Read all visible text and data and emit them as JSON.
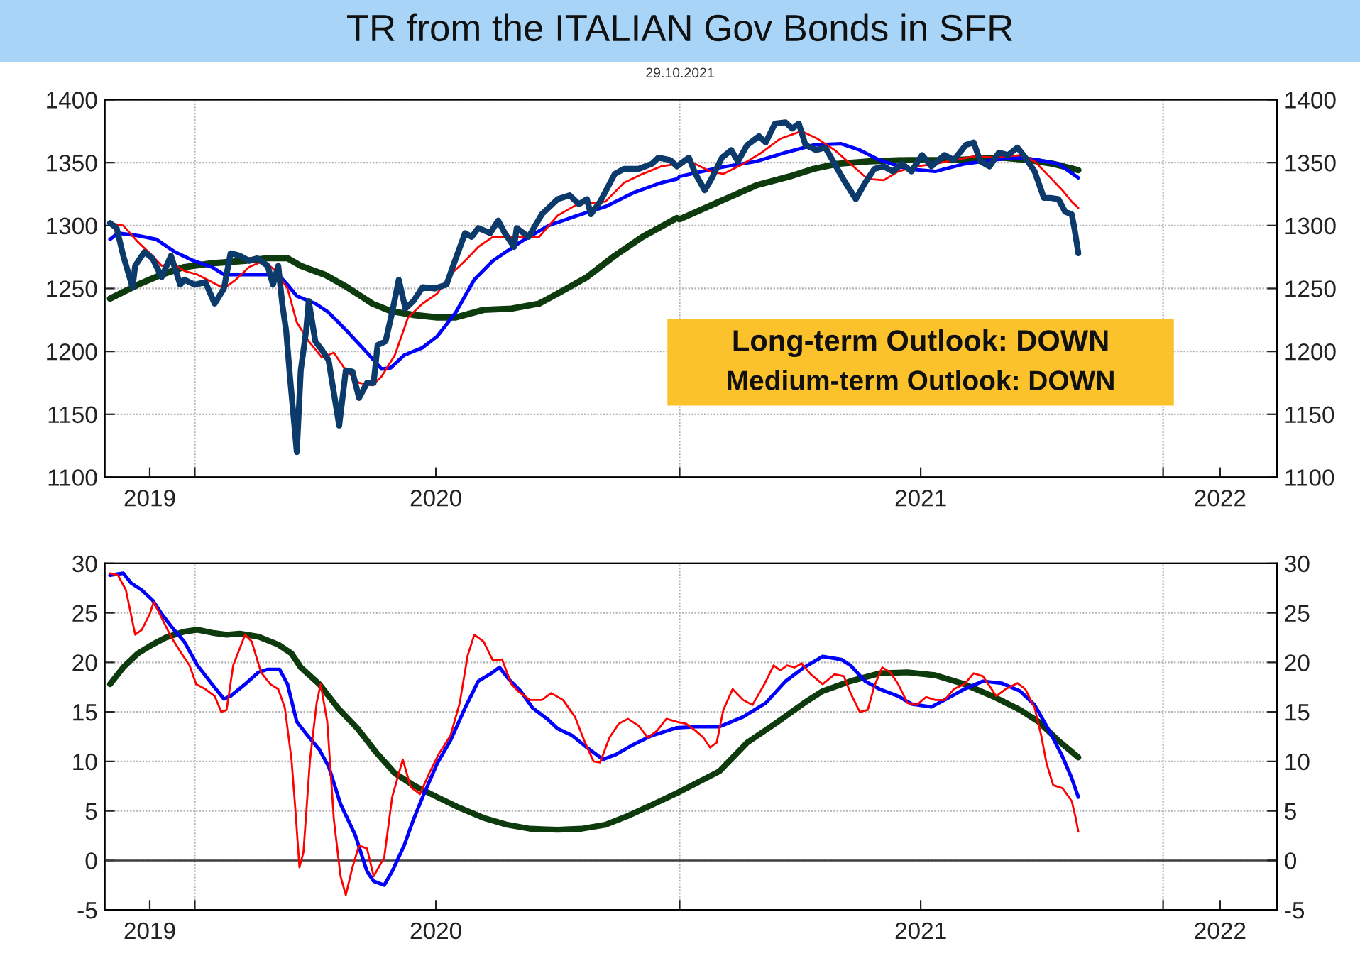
{
  "chart_data": [
    {
      "type": "line",
      "title": "TR from the ITALIAN Gov Bonds in SFR",
      "subtitle": "29.10.2021",
      "annotations": [
        "Long-term Outlook: DOWN",
        "Medium-term Outlook: DOWN"
      ],
      "xlim": [
        "2019-10-25",
        "2022-03-28"
      ],
      "xticks": [
        {
          "value": "2019-11-28",
          "label": "2019"
        },
        {
          "value": "2020-01-01",
          "label": null
        },
        {
          "value": "2020-07-01",
          "label": "2020"
        },
        {
          "value": "2021-01-01",
          "label": null
        },
        {
          "value": "2021-07-02",
          "label": "2021"
        },
        {
          "value": "2022-01-01",
          "label": null
        },
        {
          "value": "2022-02-13",
          "label": "2022"
        }
      ],
      "ylim": [
        1100,
        1400
      ],
      "yticks": [
        1100,
        1150,
        1200,
        1250,
        1300,
        1350,
        1400
      ],
      "y2lim": [
        1100,
        1400
      ],
      "y2ticks": [
        1100,
        1150,
        1200,
        1250,
        1300,
        1350,
        1400
      ],
      "grid": true,
      "series": [
        {
          "color": "#0b3a6b",
          "x": [
            "2019-10-29",
            "2019-11-03",
            "2019-11-08",
            "2019-11-15",
            "2019-11-17",
            "2019-11-24",
            "2019-11-30",
            "2019-12-07",
            "2019-12-14",
            "2019-12-21",
            "2019-12-24",
            "2020-01-01",
            "2020-01-09",
            "2020-01-16",
            "2020-01-23",
            "2020-01-28",
            "2020-02-04",
            "2020-02-11",
            "2020-02-17",
            "2020-02-25",
            "2020-02-29",
            "2020-03-04",
            "2020-03-07",
            "2020-03-10",
            "2020-03-13",
            "2020-03-18",
            "2020-03-21",
            "2020-03-25",
            "2020-03-27",
            "2020-04-01",
            "2020-04-06",
            "2020-04-11",
            "2020-04-15",
            "2020-04-19",
            "2020-04-24",
            "2020-04-29",
            "2020-05-04",
            "2020-05-10",
            "2020-05-15",
            "2020-05-18",
            "2020-05-24",
            "2020-05-29",
            "2020-06-03",
            "2020-06-08",
            "2020-06-14",
            "2020-06-21",
            "2020-06-30",
            "2020-07-09",
            "2020-07-14",
            "2020-07-23",
            "2020-07-28",
            "2020-08-02",
            "2020-08-11",
            "2020-08-17",
            "2020-08-22",
            "2020-08-29",
            "2020-08-31",
            "2020-09-09",
            "2020-09-19",
            "2020-10-01",
            "2020-10-10",
            "2020-10-17",
            "2020-10-23",
            "2020-10-26",
            "2020-11-02",
            "2020-11-13",
            "2020-11-20",
            "2020-12-01",
            "2020-12-11",
            "2020-12-16",
            "2020-12-25",
            "2020-12-30",
            "2021-01-08",
            "2021-01-13",
            "2021-01-20",
            "2021-01-25",
            "2021-02-02",
            "2021-02-09",
            "2021-02-14",
            "2021-02-21",
            "2021-03-02",
            "2021-03-07",
            "2021-03-14",
            "2021-03-22",
            "2021-03-27",
            "2021-04-01",
            "2021-04-06",
            "2021-04-14",
            "2021-04-21",
            "2021-04-28",
            "2021-05-05",
            "2021-05-14",
            "2021-05-21",
            "2021-05-28",
            "2021-06-04",
            "2021-06-11",
            "2021-06-18",
            "2021-06-25",
            "2021-07-03",
            "2021-07-10",
            "2021-07-20",
            "2021-07-27",
            "2021-08-05",
            "2021-08-11",
            "2021-08-16",
            "2021-08-23",
            "2021-08-30",
            "2021-09-06",
            "2021-09-13",
            "2021-09-19",
            "2021-09-26",
            "2021-10-03",
            "2021-10-08",
            "2021-10-14",
            "2021-10-19",
            "2021-10-24",
            "2021-10-26",
            "2021-10-29"
          ],
          "values": [
            1302,
            1298,
            1276,
            1251,
            1268,
            1279,
            1274,
            1259,
            1276,
            1253,
            1257,
            1253,
            1255,
            1238,
            1250,
            1278,
            1276,
            1272,
            1274,
            1268,
            1253,
            1268,
            1238,
            1216,
            1178,
            1120,
            1185,
            1216,
            1240,
            1208,
            1201,
            1193,
            1167,
            1141,
            1185,
            1184,
            1163,
            1175,
            1175,
            1205,
            1208,
            1231,
            1257,
            1234,
            1240,
            1251,
            1250,
            1253,
            1268,
            1294,
            1291,
            1298,
            1294,
            1304,
            1294,
            1283,
            1298,
            1291,
            1309,
            1321,
            1324,
            1317,
            1321,
            1309,
            1319,
            1341,
            1345,
            1345,
            1349,
            1354,
            1352,
            1347,
            1354,
            1341,
            1328,
            1337,
            1354,
            1360,
            1351,
            1364,
            1371,
            1366,
            1381,
            1382,
            1377,
            1381,
            1364,
            1360,
            1362,
            1349,
            1336,
            1321,
            1334,
            1345,
            1347,
            1343,
            1349,
            1343,
            1356,
            1347,
            1356,
            1352,
            1364,
            1366,
            1351,
            1347,
            1358,
            1356,
            1362,
            1354,
            1343,
            1322,
            1322,
            1321,
            1311,
            1309,
            1298,
            1278
          ]
        },
        {
          "color": "#ff0000",
          "x": [
            "2019-10-29",
            "2019-11-08",
            "2019-11-19",
            "2019-11-30",
            "2019-12-07",
            "2019-12-15",
            "2019-12-24",
            "2020-01-03",
            "2020-01-14",
            "2020-01-23",
            "2020-02-01",
            "2020-02-11",
            "2020-02-22",
            "2020-03-02",
            "2020-03-11",
            "2020-03-18",
            "2020-03-27",
            "2020-04-06",
            "2020-04-15",
            "2020-04-24",
            "2020-05-04",
            "2020-05-14",
            "2020-05-21",
            "2020-05-31",
            "2020-06-10",
            "2020-06-21",
            "2020-07-02",
            "2020-07-12",
            "2020-07-23",
            "2020-08-02",
            "2020-08-13",
            "2020-08-27",
            "2020-09-17",
            "2020-10-01",
            "2020-10-16",
            "2020-11-06",
            "2020-11-20",
            "2020-12-04",
            "2020-12-18",
            "2020-12-30",
            "2021-01-09",
            "2021-01-24",
            "2021-02-03",
            "2021-02-18",
            "2021-03-04",
            "2021-03-18",
            "2021-04-03",
            "2021-04-15",
            "2021-04-28",
            "2021-05-10",
            "2021-05-23",
            "2021-06-04",
            "2021-06-15",
            "2021-06-29",
            "2021-07-13",
            "2021-07-27",
            "2021-08-11",
            "2021-08-28",
            "2021-09-15",
            "2021-09-26",
            "2021-10-07",
            "2021-10-17",
            "2021-10-24",
            "2021-10-29"
          ],
          "values": [
            1302,
            1300,
            1287,
            1276,
            1268,
            1270,
            1264,
            1261,
            1255,
            1250,
            1257,
            1267,
            1272,
            1264,
            1250,
            1223,
            1208,
            1195,
            1199,
            1185,
            1175,
            1173,
            1180,
            1197,
            1227,
            1238,
            1246,
            1261,
            1272,
            1283,
            1291,
            1291,
            1291,
            1308,
            1317,
            1319,
            1334,
            1341,
            1347,
            1349,
            1351,
            1343,
            1341,
            1349,
            1358,
            1369,
            1375,
            1369,
            1360,
            1349,
            1337,
            1336,
            1343,
            1347,
            1349,
            1352,
            1355,
            1354,
            1356,
            1351,
            1339,
            1328,
            1319,
            1314
          ]
        },
        {
          "color": "#0000ff",
          "x": [
            "2019-10-29",
            "2019-11-04",
            "2019-11-19",
            "2019-12-03",
            "2019-12-17",
            "2019-12-31",
            "2020-01-14",
            "2020-01-23",
            "2020-02-04",
            "2020-02-25",
            "2020-03-04",
            "2020-03-11",
            "2020-03-18",
            "2020-04-01",
            "2020-04-11",
            "2020-04-25",
            "2020-05-10",
            "2020-05-21",
            "2020-05-28",
            "2020-06-07",
            "2020-06-21",
            "2020-07-02",
            "2020-07-16",
            "2020-07-30",
            "2020-08-13",
            "2020-09-03",
            "2020-09-24",
            "2020-10-16",
            "2020-11-06",
            "2020-11-27",
            "2020-12-18",
            "2020-12-30",
            "2021-01-01",
            "2021-01-31",
            "2021-02-28",
            "2021-03-22",
            "2021-04-12",
            "2021-05-03",
            "2021-05-17",
            "2021-06-01",
            "2021-06-22",
            "2021-07-13",
            "2021-08-04",
            "2021-08-25",
            "2021-09-12",
            "2021-09-29",
            "2021-10-14",
            "2021-10-29"
          ],
          "values": [
            1289,
            1294,
            1292,
            1289,
            1279,
            1272,
            1267,
            1261,
            1261,
            1261,
            1261,
            1253,
            1244,
            1238,
            1231,
            1216,
            1199,
            1186,
            1187,
            1197,
            1203,
            1212,
            1231,
            1257,
            1272,
            1287,
            1300,
            1308,
            1315,
            1326,
            1334,
            1337,
            1339,
            1346,
            1351,
            1358,
            1364,
            1365,
            1360,
            1352,
            1345,
            1343,
            1349,
            1352,
            1354,
            1352,
            1349,
            1338
          ]
        },
        {
          "color": "#0d3b0d",
          "x": [
            "2019-10-29",
            "2019-11-19",
            "2019-12-07",
            "2019-12-24",
            "2020-01-14",
            "2020-02-08",
            "2020-02-25",
            "2020-03-11",
            "2020-03-21",
            "2020-04-08",
            "2020-04-25",
            "2020-05-14",
            "2020-05-28",
            "2020-06-14",
            "2020-07-02",
            "2020-07-16",
            "2020-08-06",
            "2020-08-27",
            "2020-09-17",
            "2020-10-01",
            "2020-10-23",
            "2020-11-13",
            "2020-12-04",
            "2020-12-30",
            "2021-01-01",
            "2021-01-31",
            "2021-02-28",
            "2021-03-25",
            "2021-04-12",
            "2021-04-30",
            "2021-05-24",
            "2021-06-22",
            "2021-07-27",
            "2021-09-01",
            "2021-09-22",
            "2021-10-10",
            "2021-10-29"
          ],
          "values": [
            1242,
            1253,
            1261,
            1267,
            1270,
            1272,
            1274,
            1274,
            1268,
            1261,
            1251,
            1238,
            1232,
            1229,
            1227,
            1227,
            1233,
            1234,
            1238,
            1246,
            1259,
            1276,
            1291,
            1306,
            1305,
            1319,
            1332,
            1339,
            1345,
            1349,
            1351,
            1352,
            1352,
            1354,
            1352,
            1349,
            1344
          ]
        }
      ]
    },
    {
      "type": "line",
      "xlim": [
        "2019-10-25",
        "2022-03-28"
      ],
      "xticks": [
        {
          "value": "2019-11-28",
          "label": "2019"
        },
        {
          "value": "2020-01-01",
          "label": null
        },
        {
          "value": "2020-07-01",
          "label": "2020"
        },
        {
          "value": "2021-01-01",
          "label": null
        },
        {
          "value": "2021-07-02",
          "label": "2021"
        },
        {
          "value": "2022-01-01",
          "label": null
        },
        {
          "value": "2022-02-13",
          "label": "2022"
        }
      ],
      "ylim": [
        -5,
        30
      ],
      "yticks": [
        -5,
        0,
        5,
        10,
        15,
        20,
        25,
        30
      ],
      "y2lim": [
        -5,
        30
      ],
      "y2ticks": [
        -5,
        0,
        5,
        10,
        15,
        20,
        25,
        30
      ],
      "grid": true,
      "ref_lines": [
        {
          "axis": "y",
          "value": 0,
          "color": "#404040",
          "line_style": "solid"
        }
      ],
      "series": [
        {
          "color": "#ff0000",
          "x": [
            "2019-10-29",
            "2019-11-04",
            "2019-11-10",
            "2019-11-17",
            "2019-11-22",
            "2019-11-28",
            "2019-12-01",
            "2019-12-07",
            "2019-12-14",
            "2019-12-21",
            "2019-12-28",
            "2020-01-02",
            "2020-01-09",
            "2020-01-16",
            "2020-01-21",
            "2020-01-25",
            "2020-01-30",
            "2020-02-08",
            "2020-02-13",
            "2020-02-20",
            "2020-02-27",
            "2020-03-04",
            "2020-03-09",
            "2020-03-14",
            "2020-03-17",
            "2020-03-20",
            "2020-03-23",
            "2020-03-28",
            "2020-04-02",
            "2020-04-05",
            "2020-04-10",
            "2020-04-15",
            "2020-04-20",
            "2020-04-24",
            "2020-04-29",
            "2020-05-04",
            "2020-05-10",
            "2020-05-15",
            "2020-05-23",
            "2020-05-29",
            "2020-06-06",
            "2020-06-12",
            "2020-06-19",
            "2020-06-26",
            "2020-07-03",
            "2020-07-12",
            "2020-07-19",
            "2020-07-25",
            "2020-07-30",
            "2020-08-06",
            "2020-08-13",
            "2020-08-20",
            "2020-08-27",
            "2020-09-01",
            "2020-09-10",
            "2020-09-19",
            "2020-09-26",
            "2020-10-05",
            "2020-10-14",
            "2020-10-21",
            "2020-10-28",
            "2020-11-02",
            "2020-11-09",
            "2020-11-16",
            "2020-11-23",
            "2020-12-01",
            "2020-12-08",
            "2020-12-15",
            "2020-12-22",
            "2020-12-30",
            "2021-01-06",
            "2021-01-13",
            "2021-01-19",
            "2021-01-24",
            "2021-01-29",
            "2021-02-03",
            "2021-02-10",
            "2021-02-18",
            "2021-02-25",
            "2021-03-06",
            "2021-03-13",
            "2021-03-18",
            "2021-03-23",
            "2021-03-29",
            "2021-04-03",
            "2021-04-10",
            "2021-04-19",
            "2021-04-28",
            "2021-05-05",
            "2021-05-10",
            "2021-05-17",
            "2021-05-23",
            "2021-05-28",
            "2021-06-03",
            "2021-06-09",
            "2021-06-15",
            "2021-06-22",
            "2021-06-29",
            "2021-07-06",
            "2021-07-13",
            "2021-07-20",
            "2021-07-27",
            "2021-08-04",
            "2021-08-11",
            "2021-08-18",
            "2021-08-23",
            "2021-08-28",
            "2021-09-04",
            "2021-09-13",
            "2021-09-19",
            "2021-09-26",
            "2021-10-01",
            "2021-10-05",
            "2021-10-10",
            "2021-10-17",
            "2021-10-24",
            "2021-10-27",
            "2021-10-29"
          ],
          "values": [
            29.0,
            28.8,
            27.3,
            22.8,
            23.3,
            24.9,
            26.1,
            24.5,
            22.6,
            21.1,
            19.7,
            17.8,
            17.3,
            16.6,
            15.0,
            15.2,
            19.7,
            22.8,
            22.1,
            19.0,
            17.8,
            17.3,
            15.4,
            10.2,
            5.0,
            -0.7,
            0.8,
            10.2,
            15.9,
            17.8,
            14.0,
            4.1,
            -1.6,
            -3.5,
            -0.7,
            1.5,
            1.2,
            -1.6,
            0.3,
            6.4,
            10.2,
            7.4,
            6.7,
            8.8,
            10.7,
            12.6,
            15.9,
            20.7,
            22.8,
            22.1,
            20.2,
            20.3,
            17.8,
            17.1,
            16.2,
            16.2,
            16.9,
            16.2,
            14.5,
            12.1,
            10.0,
            9.9,
            12.4,
            13.8,
            14.3,
            13.6,
            12.4,
            13.1,
            14.3,
            14.0,
            13.8,
            13.1,
            12.4,
            11.4,
            11.9,
            15.2,
            17.3,
            16.2,
            15.7,
            17.8,
            19.7,
            19.2,
            19.7,
            19.5,
            19.9,
            18.8,
            17.8,
            18.8,
            18.6,
            16.9,
            15.0,
            15.2,
            17.6,
            19.5,
            19.0,
            17.8,
            15.9,
            15.7,
            16.5,
            16.2,
            16.2,
            17.3,
            17.8,
            18.9,
            18.6,
            17.6,
            16.6,
            17.3,
            17.9,
            17.3,
            15.4,
            12.6,
            9.8,
            7.6,
            7.3,
            6.0,
            4.3,
            2.9
          ]
        },
        {
          "color": "#0000ff",
          "x": [
            "2019-10-29",
            "2019-11-08",
            "2019-11-14",
            "2019-11-22",
            "2019-11-30",
            "2019-12-07",
            "2019-12-15",
            "2019-12-24",
            "2020-01-03",
            "2020-01-14",
            "2020-01-23",
            "2020-01-28",
            "2020-02-08",
            "2020-02-18",
            "2020-02-25",
            "2020-03-05",
            "2020-03-11",
            "2020-03-18",
            "2020-03-25",
            "2020-04-04",
            "2020-04-11",
            "2020-04-20",
            "2020-05-01",
            "2020-05-10",
            "2020-05-15",
            "2020-05-23",
            "2020-05-29",
            "2020-06-07",
            "2020-06-14",
            "2020-06-21",
            "2020-07-02",
            "2020-07-12",
            "2020-07-23",
            "2020-08-02",
            "2020-08-13",
            "2020-08-18",
            "2020-08-25",
            "2020-09-03",
            "2020-09-12",
            "2020-09-23",
            "2020-10-01",
            "2020-10-12",
            "2020-10-23",
            "2020-11-04",
            "2020-11-14",
            "2020-11-27",
            "2020-12-11",
            "2020-12-30",
            "2021-01-13",
            "2021-01-31",
            "2021-02-18",
            "2021-03-07",
            "2021-03-22",
            "2021-04-05",
            "2021-04-19",
            "2021-05-03",
            "2021-05-10",
            "2021-05-21",
            "2021-06-01",
            "2021-06-15",
            "2021-06-25",
            "2021-07-10",
            "2021-07-20",
            "2021-08-04",
            "2021-08-18",
            "2021-09-01",
            "2021-09-15",
            "2021-09-26",
            "2021-10-07",
            "2021-10-17",
            "2021-10-24",
            "2021-10-29"
          ],
          "values": [
            28.8,
            29.0,
            28.0,
            27.3,
            26.3,
            24.9,
            23.5,
            22.1,
            19.7,
            17.8,
            16.3,
            16.6,
            17.8,
            19.0,
            19.3,
            19.3,
            17.8,
            14.0,
            12.8,
            11.2,
            9.5,
            5.7,
            2.6,
            -1.1,
            -2.1,
            -2.5,
            -1.1,
            1.5,
            4.1,
            6.4,
            9.8,
            12.1,
            15.4,
            18.1,
            19.0,
            19.5,
            18.3,
            17.1,
            15.4,
            14.3,
            13.3,
            12.6,
            11.4,
            10.2,
            10.7,
            11.7,
            12.6,
            13.4,
            13.5,
            13.5,
            14.5,
            15.9,
            18.1,
            19.5,
            20.6,
            20.3,
            19.7,
            18.1,
            17.3,
            16.6,
            15.8,
            15.5,
            16.2,
            17.3,
            18.1,
            17.9,
            17.1,
            15.7,
            13.1,
            10.5,
            8.3,
            6.4
          ]
        },
        {
          "color": "#0d3b0d",
          "x": [
            "2019-10-29",
            "2019-11-08",
            "2019-11-19",
            "2019-11-30",
            "2019-12-10",
            "2019-12-24",
            "2020-01-03",
            "2020-01-14",
            "2020-01-25",
            "2020-02-04",
            "2020-02-18",
            "2020-03-04",
            "2020-03-14",
            "2020-03-21",
            "2020-04-04",
            "2020-04-18",
            "2020-05-03",
            "2020-05-17",
            "2020-05-31",
            "2020-06-14",
            "2020-07-02",
            "2020-07-19",
            "2020-08-06",
            "2020-08-24",
            "2020-09-10",
            "2020-10-01",
            "2020-10-19",
            "2020-11-06",
            "2020-11-23",
            "2020-12-11",
            "2020-12-30",
            "2021-01-31",
            "2021-02-21",
            "2021-03-14",
            "2021-04-05",
            "2021-04-19",
            "2021-05-10",
            "2021-06-01",
            "2021-06-22",
            "2021-07-13",
            "2021-08-04",
            "2021-08-25",
            "2021-09-15",
            "2021-09-29",
            "2021-10-14",
            "2021-10-29"
          ],
          "values": [
            17.8,
            19.5,
            20.9,
            21.8,
            22.5,
            23.1,
            23.3,
            23.0,
            22.8,
            22.9,
            22.6,
            21.8,
            20.9,
            19.5,
            17.8,
            15.4,
            13.3,
            10.9,
            8.8,
            7.6,
            6.4,
            5.3,
            4.3,
            3.6,
            3.2,
            3.1,
            3.2,
            3.6,
            4.5,
            5.6,
            6.8,
            9.0,
            11.9,
            13.8,
            15.9,
            17.1,
            18.1,
            18.9,
            19.0,
            18.7,
            17.8,
            16.6,
            15.2,
            14.0,
            12.1,
            10.4
          ]
        }
      ]
    }
  ]
}
